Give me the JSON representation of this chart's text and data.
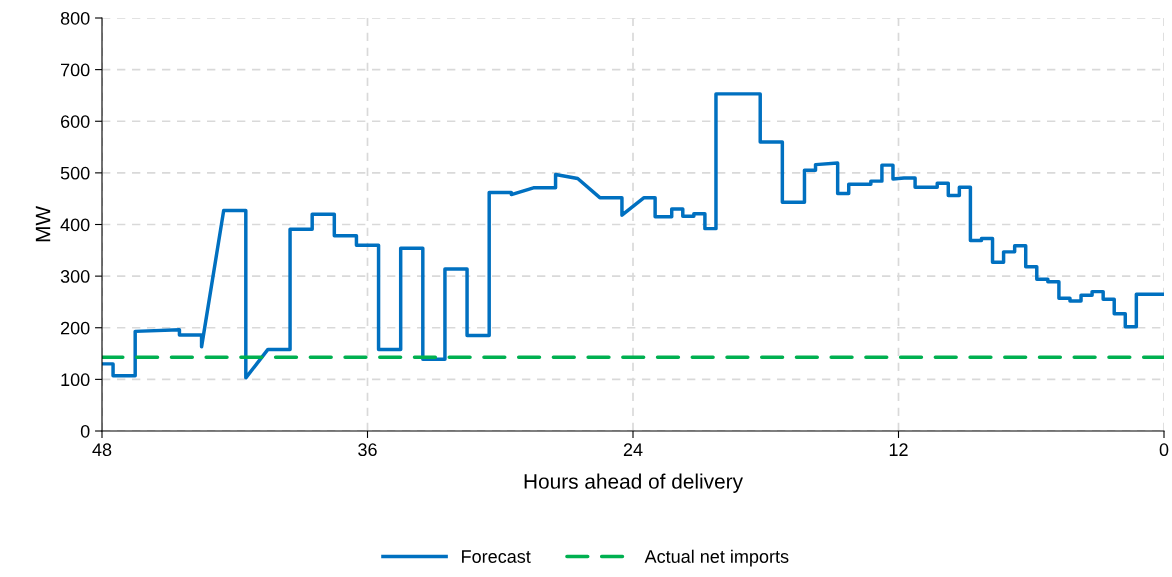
{
  "chart_data": {
    "type": "line",
    "xlabel": "Hours ahead of delivery",
    "ylabel": "MW",
    "xlim": [
      48,
      0
    ],
    "xticks": [
      48,
      36,
      24,
      12,
      0
    ],
    "ylim": [
      0,
      800
    ],
    "yticks": [
      0,
      100,
      200,
      300,
      400,
      500,
      600,
      700,
      800
    ],
    "grid": true,
    "legend": "bottom",
    "marker": "none",
    "series": [
      {
        "name": "Forecast",
        "color": "#0070c0",
        "line_style": "solid",
        "x": [
          48,
          47.5,
          47.5,
          46.5,
          46.5,
          44.5,
          44.5,
          43.5,
          43.5,
          42.5,
          41.5,
          41.5,
          40.5,
          39.5,
          39.5,
          38.5,
          38.5,
          37.5,
          37.5,
          36.5,
          36.5,
          35.5,
          35.5,
          34.5,
          34.5,
          33.5,
          33.5,
          32.5,
          32.5,
          31.5,
          31.5,
          30.5,
          30.5,
          29.5,
          29.5,
          28.5,
          27.5,
          27.5,
          26.5,
          25.5,
          24.5,
          24.5,
          23.5,
          23,
          23,
          22.25,
          22.25,
          21.75,
          21.75,
          21.25,
          21.25,
          20.75,
          20.75,
          20.25,
          20.25,
          18.25,
          18.25,
          17.25,
          17.25,
          16.25,
          16.25,
          15.75,
          15.75,
          14.75,
          14.75,
          14.25,
          14.25,
          13.25,
          13.25,
          12.75,
          12.75,
          12.25,
          12.25,
          11.75,
          11.25,
          11.25,
          10.25,
          10.25,
          9.75,
          9.75,
          9.25,
          9.25,
          8.75,
          8.75,
          8.25,
          8.25,
          7.75,
          7.75,
          7.25,
          7.25,
          6.75,
          6.75,
          6.25,
          6.25,
          5.75,
          5.75,
          5.25,
          5.25,
          4.75,
          4.75,
          4.25,
          4.25,
          3.75,
          3.75,
          3.25,
          3.25,
          2.75,
          2.75,
          2.25,
          2.25,
          1.75,
          1.75,
          1.25,
          1.25,
          0
        ],
        "values": [
          130,
          130,
          107,
          107,
          193,
          196,
          186,
          186,
          163,
          427,
          427,
          103,
          158,
          158,
          391,
          391,
          420,
          420,
          378,
          378,
          360,
          360,
          158,
          158,
          354,
          354,
          139,
          139,
          314,
          314,
          185,
          185,
          462,
          462,
          458,
          471,
          471,
          497,
          489,
          452,
          452,
          418,
          452,
          452,
          415,
          415,
          430,
          430,
          416,
          416,
          421,
          421,
          392,
          392,
          653,
          653,
          560,
          560,
          443,
          443,
          505,
          505,
          516,
          519,
          460,
          460,
          478,
          478,
          484,
          484,
          515,
          515,
          488,
          490,
          490,
          472,
          472,
          480,
          480,
          456,
          456,
          472,
          472,
          369,
          369,
          373,
          373,
          327,
          327,
          347,
          347,
          359,
          359,
          318,
          318,
          294,
          294,
          289,
          289,
          257,
          257,
          252,
          252,
          263,
          263,
          270,
          270,
          255,
          255,
          227,
          227,
          202,
          202,
          265,
          265
        ]
      },
      {
        "name": "Actual net imports",
        "color": "#00b050",
        "line_style": "dashed",
        "x": [
          48,
          0
        ],
        "values": [
          143,
          143
        ]
      }
    ]
  }
}
